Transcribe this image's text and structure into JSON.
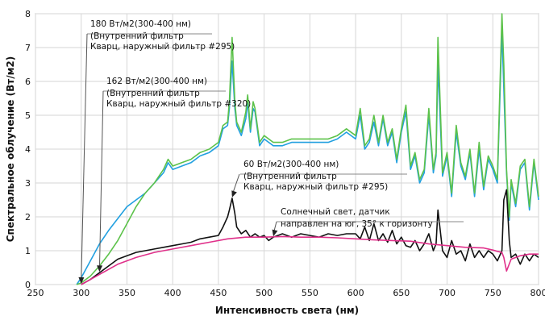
{
  "chart_data": {
    "type": "line",
    "title": "",
    "xlabel": "Интенсивность света (нм)",
    "ylabel": "Спектральное облучение (Вт/м2)",
    "xlim": [
      250,
      800
    ],
    "ylim": [
      0,
      8
    ],
    "x_ticks": [
      250,
      300,
      350,
      400,
      450,
      500,
      550,
      600,
      650,
      700,
      750,
      800
    ],
    "y_ticks": [
      0,
      1,
      2,
      3,
      4,
      5,
      6,
      7,
      8
    ],
    "grid": true,
    "colors": {
      "series1": "#22a0e0",
      "series2": "#5cc24a",
      "series3": "#111111",
      "series4": "#e0308a"
    },
    "series": [
      {
        "color": "#22a0e0",
        "x": [
          295,
          300,
          310,
          320,
          330,
          340,
          350,
          360,
          370,
          380,
          390,
          395,
          400,
          410,
          420,
          430,
          440,
          450,
          455,
          460,
          462,
          465,
          468,
          470,
          475,
          480,
          482,
          485,
          488,
          490,
          495,
          500,
          510,
          520,
          530,
          540,
          550,
          560,
          570,
          580,
          590,
          600,
          605,
          610,
          615,
          620,
          625,
          630,
          635,
          640,
          645,
          650,
          655,
          660,
          665,
          670,
          675,
          680,
          685,
          688,
          690,
          695,
          700,
          705,
          710,
          715,
          720,
          725,
          730,
          735,
          740,
          745,
          750,
          755,
          760,
          762,
          765,
          768,
          770,
          775,
          780,
          785,
          790,
          795,
          800
        ],
        "y": [
          0,
          0.2,
          0.7,
          1.2,
          1.6,
          1.95,
          2.3,
          2.5,
          2.7,
          3.0,
          3.3,
          3.6,
          3.4,
          3.5,
          3.6,
          3.8,
          3.9,
          4.1,
          4.6,
          4.7,
          5.2,
          6.6,
          5.2,
          4.7,
          4.4,
          4.9,
          5.4,
          4.5,
          5.2,
          5.1,
          4.1,
          4.3,
          4.1,
          4.1,
          4.2,
          4.2,
          4.2,
          4.2,
          4.2,
          4.3,
          4.5,
          4.3,
          5.0,
          4.0,
          4.2,
          4.8,
          4.1,
          4.9,
          4.1,
          4.5,
          3.6,
          4.5,
          5.1,
          3.4,
          3.8,
          3.0,
          3.3,
          5.0,
          3.3,
          3.8,
          6.5,
          3.2,
          3.8,
          2.6,
          4.5,
          3.5,
          3.1,
          3.9,
          2.6,
          4.0,
          2.8,
          3.7,
          3.4,
          3.0,
          7.5,
          5.8,
          3.3,
          1.9,
          3.0,
          2.3,
          3.4,
          3.6,
          2.2,
          3.6,
          2.5
        ]
      },
      {
        "color": "#5cc24a",
        "x": [
          295,
          300,
          310,
          320,
          330,
          340,
          350,
          360,
          370,
          380,
          390,
          395,
          400,
          410,
          420,
          430,
          440,
          450,
          455,
          460,
          462,
          465,
          468,
          470,
          475,
          480,
          482,
          485,
          488,
          490,
          495,
          500,
          510,
          520,
          530,
          540,
          550,
          560,
          570,
          580,
          590,
          600,
          605,
          610,
          615,
          620,
          625,
          630,
          635,
          640,
          645,
          650,
          655,
          660,
          665,
          670,
          675,
          680,
          685,
          688,
          690,
          695,
          700,
          705,
          710,
          715,
          720,
          725,
          730,
          735,
          740,
          745,
          750,
          755,
          760,
          762,
          765,
          768,
          770,
          775,
          780,
          785,
          790,
          795,
          800
        ],
        "y": [
          0,
          0.05,
          0.25,
          0.55,
          0.9,
          1.3,
          1.8,
          2.3,
          2.7,
          3.0,
          3.4,
          3.7,
          3.5,
          3.6,
          3.7,
          3.9,
          4.0,
          4.2,
          4.7,
          4.8,
          5.4,
          7.3,
          5.4,
          4.8,
          4.5,
          5.1,
          5.6,
          4.6,
          5.4,
          5.2,
          4.2,
          4.4,
          4.2,
          4.2,
          4.3,
          4.3,
          4.3,
          4.3,
          4.3,
          4.4,
          4.6,
          4.4,
          5.2,
          4.1,
          4.3,
          5.0,
          4.2,
          5.0,
          4.2,
          4.6,
          3.7,
          4.6,
          5.3,
          3.5,
          3.9,
          3.1,
          3.4,
          5.2,
          3.4,
          3.9,
          7.3,
          3.3,
          3.9,
          2.7,
          4.7,
          3.6,
          3.2,
          4.0,
          2.7,
          4.2,
          2.9,
          3.8,
          3.5,
          3.1,
          8.0,
          6.5,
          3.4,
          2.0,
          3.1,
          2.4,
          3.5,
          3.7,
          2.3,
          3.7,
          2.6
        ]
      },
      {
        "color": "#111111",
        "x": [
          300,
          310,
          320,
          330,
          340,
          350,
          360,
          370,
          380,
          390,
          400,
          410,
          420,
          430,
          440,
          450,
          455,
          460,
          462,
          465,
          468,
          470,
          475,
          480,
          485,
          490,
          495,
          500,
          505,
          510,
          520,
          530,
          540,
          550,
          560,
          570,
          580,
          590,
          600,
          605,
          610,
          615,
          620,
          625,
          630,
          635,
          640,
          645,
          650,
          655,
          660,
          665,
          670,
          675,
          680,
          685,
          688,
          690,
          695,
          700,
          705,
          710,
          715,
          720,
          725,
          730,
          735,
          740,
          745,
          750,
          755,
          760,
          762,
          765,
          768,
          770,
          775,
          780,
          785,
          790,
          795,
          800
        ],
        "y": [
          0,
          0.15,
          0.35,
          0.55,
          0.75,
          0.85,
          0.95,
          1.0,
          1.05,
          1.1,
          1.15,
          1.2,
          1.25,
          1.35,
          1.4,
          1.45,
          1.7,
          2.0,
          2.2,
          2.55,
          2.1,
          1.7,
          1.5,
          1.6,
          1.4,
          1.5,
          1.4,
          1.45,
          1.3,
          1.4,
          1.5,
          1.4,
          1.5,
          1.45,
          1.4,
          1.5,
          1.45,
          1.5,
          1.5,
          1.35,
          1.7,
          1.3,
          1.8,
          1.3,
          1.5,
          1.25,
          1.6,
          1.2,
          1.4,
          1.15,
          1.1,
          1.3,
          1.0,
          1.2,
          1.5,
          1.0,
          1.2,
          2.2,
          1.0,
          0.8,
          1.3,
          0.9,
          1.0,
          0.7,
          1.2,
          0.8,
          1.0,
          0.8,
          1.0,
          0.9,
          0.7,
          1.0,
          2.5,
          2.8,
          1.3,
          0.8,
          0.9,
          0.6,
          0.9,
          0.7,
          0.9,
          0.8
        ]
      },
      {
        "color": "#e0308a",
        "x": [
          300,
          320,
          340,
          360,
          380,
          400,
          420,
          440,
          460,
          480,
          500,
          520,
          540,
          560,
          580,
          600,
          620,
          640,
          660,
          680,
          700,
          720,
          740,
          750,
          755,
          760,
          762,
          765,
          770,
          780,
          790,
          800
        ],
        "y": [
          0,
          0.3,
          0.6,
          0.8,
          0.95,
          1.05,
          1.15,
          1.25,
          1.35,
          1.4,
          1.4,
          1.42,
          1.4,
          1.4,
          1.38,
          1.35,
          1.32,
          1.3,
          1.28,
          1.2,
          1.15,
          1.1,
          1.08,
          1.02,
          0.98,
          0.95,
          0.8,
          0.4,
          0.75,
          0.85,
          0.9,
          0.9
        ]
      }
    ],
    "annotations": [
      {
        "lines": [
          "180 Вт/м2(300-400 нм)",
          "(Внутренний фильтр",
          "Кварц, наружный фильтр #295)"
        ],
        "x": 300,
        "y": 0
      },
      {
        "lines": [
          "162 Вт/м2(300-400 нм)",
          "(Внутренний фильтр",
          "Кварц, наружный фильтр #320)"
        ],
        "x": 320,
        "y": 0.35
      },
      {
        "lines": [
          "60 Вт/м2(300-400 нм)",
          "(Внутренний фильтр",
          "Кварц, наружный фильтр #295)"
        ],
        "x": 465,
        "y": 2.55
      },
      {
        "lines": [
          "Солнечный свет, датчик",
          "направлен на юг, 35° к горизонту"
        ],
        "x": 510,
        "y": 1.4
      }
    ]
  }
}
